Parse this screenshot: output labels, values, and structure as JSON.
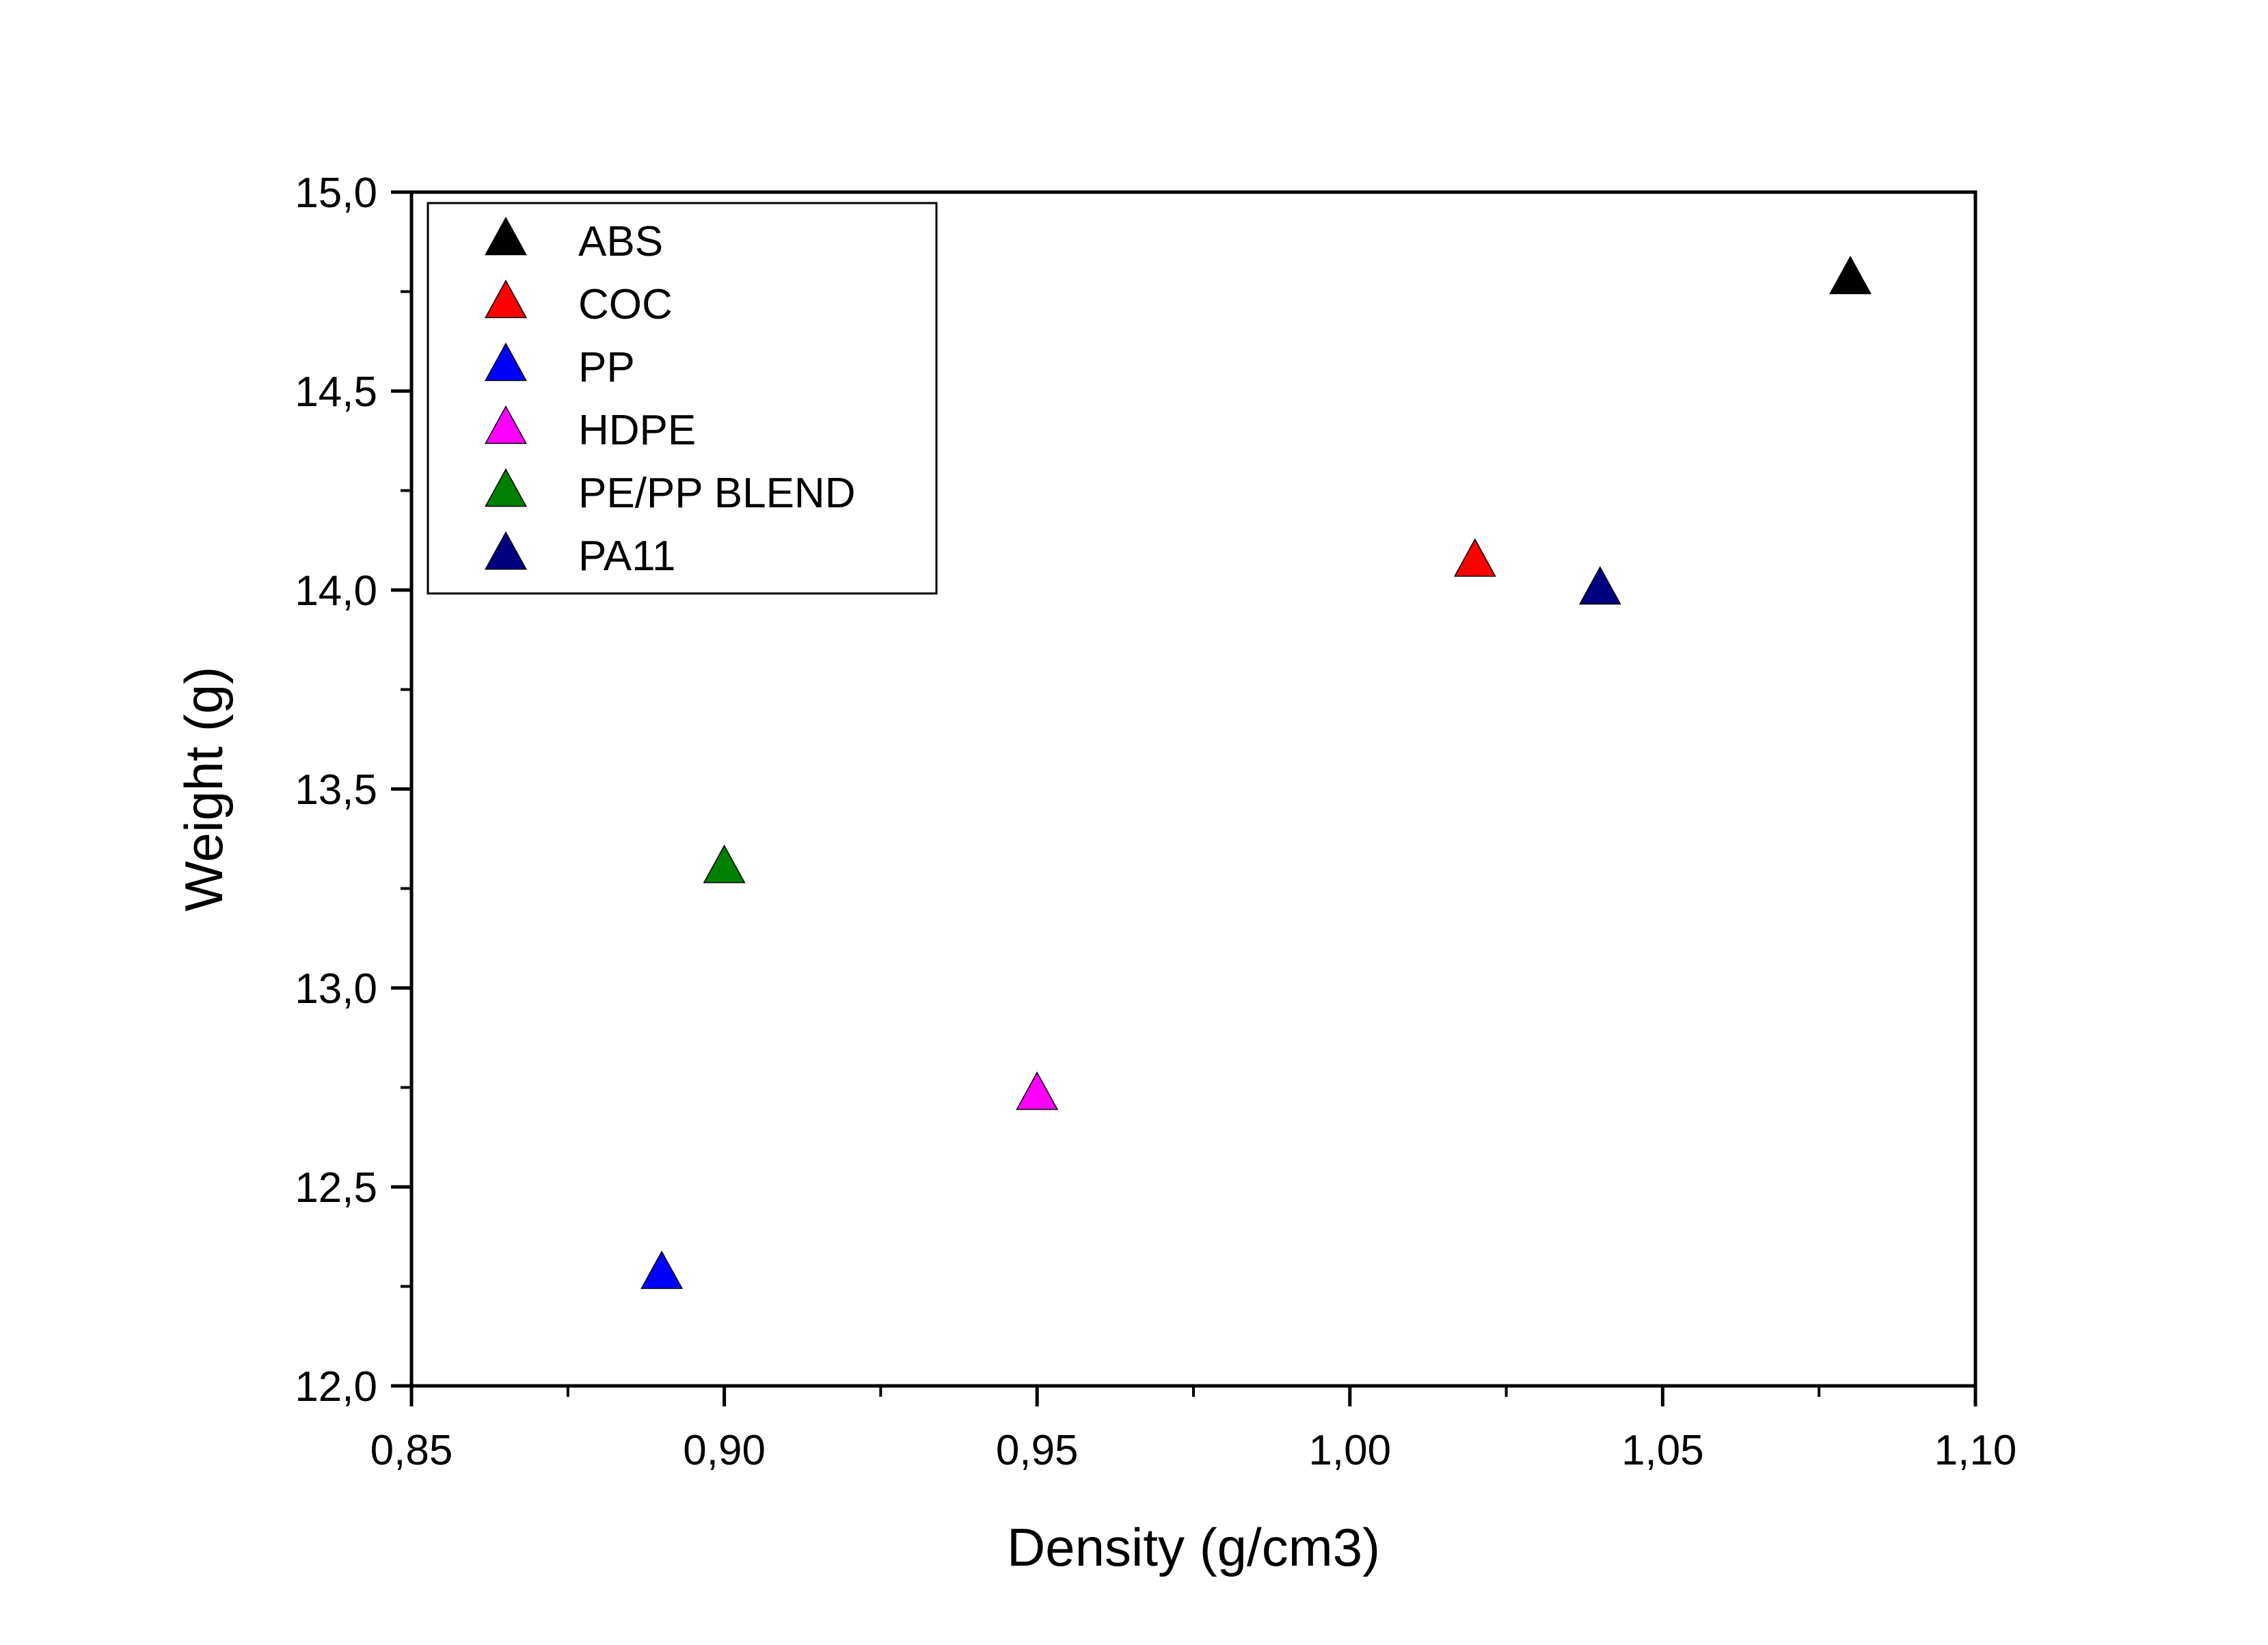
{
  "chart_data": {
    "type": "scatter",
    "xlabel": "Density (g/cm3)",
    "ylabel": "Weight (g)",
    "xlim": [
      0.85,
      1.1
    ],
    "ylim": [
      12.0,
      15.0
    ],
    "x_ticks": [
      0.85,
      0.9,
      0.95,
      1.0,
      1.05,
      1.1
    ],
    "x_tick_labels": [
      "0,85",
      "0,90",
      "0,95",
      "1,00",
      "1,05",
      "1,10"
    ],
    "y_ticks": [
      12.0,
      12.5,
      13.0,
      13.5,
      14.0,
      14.5,
      15.0
    ],
    "y_tick_labels": [
      "12,0",
      "12,5",
      "13,0",
      "13,5",
      "14,0",
      "14,5",
      "15,0"
    ],
    "marker": "triangle-up",
    "grid": false,
    "legend_position": "top-left",
    "series": [
      {
        "name": "ABS",
        "color": "#000000",
        "points": [
          {
            "x": 1.08,
            "y": 14.78
          }
        ]
      },
      {
        "name": "COC",
        "color": "#ff0000",
        "points": [
          {
            "x": 1.02,
            "y": 14.07
          }
        ]
      },
      {
        "name": "PP",
        "color": "#0000ff",
        "points": [
          {
            "x": 0.89,
            "y": 12.28
          }
        ]
      },
      {
        "name": "HDPE",
        "color": "#ff00ff",
        "points": [
          {
            "x": 0.95,
            "y": 12.73
          }
        ]
      },
      {
        "name": "PE/PP BLEND",
        "color": "#008000",
        "points": [
          {
            "x": 0.9,
            "y": 13.3
          }
        ]
      },
      {
        "name": "PA11",
        "color": "#000080",
        "points": [
          {
            "x": 1.04,
            "y": 14.0
          }
        ]
      }
    ]
  }
}
